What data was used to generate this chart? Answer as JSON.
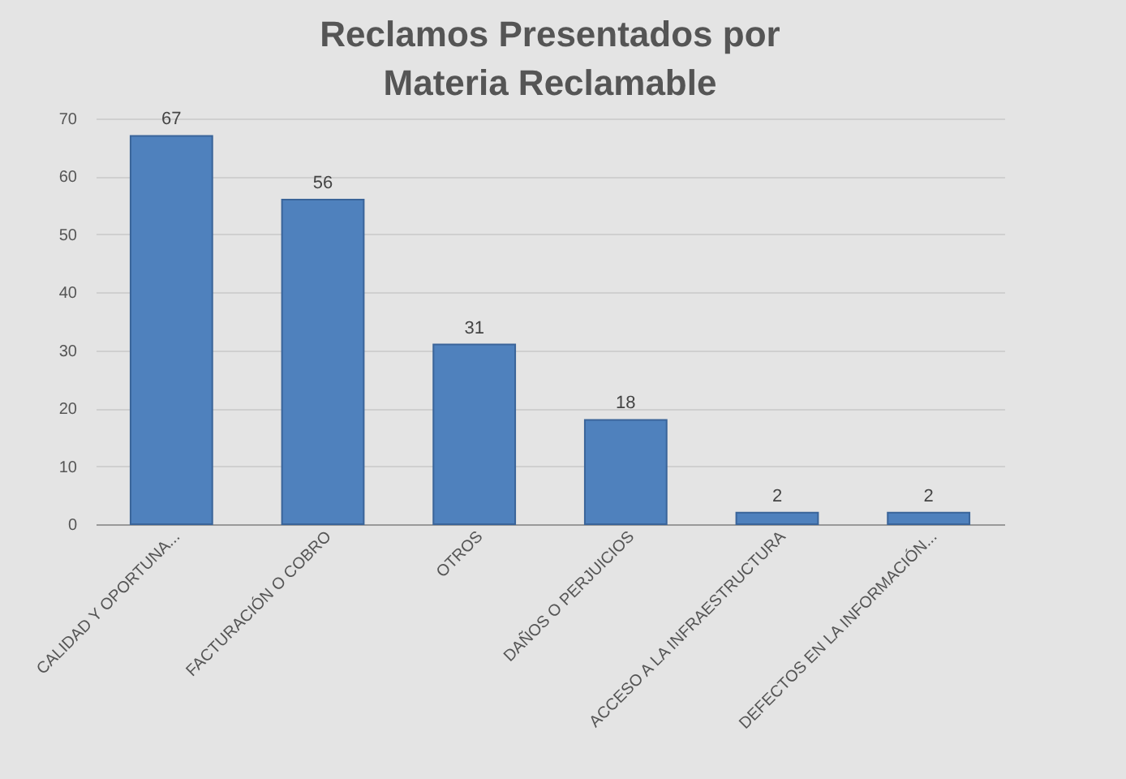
{
  "chart_data": {
    "type": "bar",
    "title": "Reclamos Presentados por Materia Reclamable",
    "categories": [
      "CALIDAD Y OPORTUNA...",
      "FACTURACIÓN O COBRO",
      "OTROS",
      "DAÑOS O PERJUICIOS",
      "ACCESO A LA INFRAESTRUCTURA",
      "DEFECTOS EN LA INFORMACIÓN..."
    ],
    "values": [
      67,
      56,
      31,
      18,
      2,
      2
    ],
    "color": "#4f81bd",
    "ylim": [
      0,
      70
    ],
    "yticks": [
      0,
      10,
      20,
      30,
      40,
      50,
      60,
      70
    ],
    "grid": "y",
    "data_labels": true
  }
}
